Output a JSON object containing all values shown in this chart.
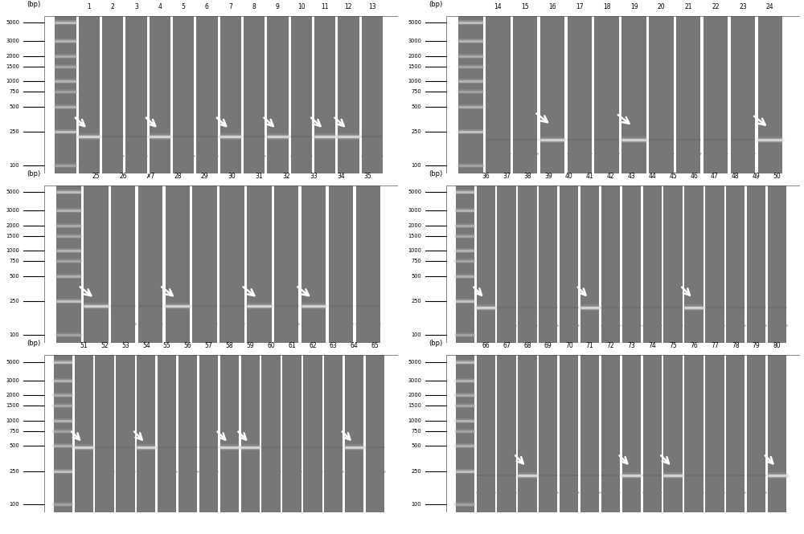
{
  "panels": [
    {
      "id": "panel1",
      "lane_labels": [
        "1",
        "2",
        "3",
        "4",
        "5",
        "6",
        "7",
        "8",
        "9",
        "10",
        "11",
        "12",
        "13"
      ],
      "bp_label": "(bp)",
      "arrows": [
        {
          "lane": 1,
          "bp": 250
        },
        {
          "lane": 4,
          "bp": 250
        },
        {
          "lane": 7,
          "bp": 250
        },
        {
          "lane": 9,
          "bp": 250
        },
        {
          "lane": 11,
          "bp": 250
        },
        {
          "lane": 12,
          "bp": 250
        }
      ],
      "bands_bright": [
        1,
        4,
        7,
        9,
        11,
        12
      ],
      "bands_dim": [
        2,
        3,
        5,
        6,
        8,
        10,
        13
      ],
      "band_bp": 220,
      "dim_bp": 130,
      "ladder_ticks": [
        5000,
        3000,
        2000,
        1500,
        1000,
        750,
        500,
        250,
        100
      ]
    },
    {
      "id": "panel2",
      "lane_labels": [
        "14",
        "15",
        "16",
        "17",
        "18",
        "19",
        "20",
        "21",
        "22",
        "23",
        "24"
      ],
      "bp_label": "(bp)",
      "arrows": [
        {
          "lane": 3,
          "bp": 280
        },
        {
          "lane": 6,
          "bp": 270
        },
        {
          "lane": 11,
          "bp": 260
        }
      ],
      "bands_bright": [
        3,
        6,
        11
      ],
      "bands_dim": [
        1,
        2,
        4,
        5,
        7,
        8,
        9,
        10
      ],
      "band_bp": 200,
      "dim_bp": 140,
      "ladder_ticks": [
        5000,
        3000,
        2000,
        1500,
        1000,
        750,
        500,
        250,
        100
      ]
    },
    {
      "id": "panel3",
      "lane_labels": [
        "25",
        "26",
        "✗7",
        "28",
        "29",
        "30",
        "31",
        "32",
        "33",
        "34",
        "35"
      ],
      "bp_label": "(bp)",
      "arrows": [
        {
          "lane": 1,
          "bp": 250
        },
        {
          "lane": 4,
          "bp": 250
        },
        {
          "lane": 7,
          "bp": 250
        },
        {
          "lane": 9,
          "bp": 250
        }
      ],
      "bands_bright": [
        1,
        4,
        7,
        9
      ],
      "bands_dim": [
        2,
        3,
        5,
        6,
        8,
        10,
        11
      ],
      "band_bp": 220,
      "dim_bp": 135,
      "ladder_ticks": [
        5000,
        3000,
        2000,
        1500,
        1000,
        750,
        500,
        250,
        100
      ]
    },
    {
      "id": "panel4",
      "lane_labels": [
        "36",
        "37",
        "38",
        "39",
        "40",
        "41",
        "42",
        "43",
        "44",
        "45",
        "46",
        "47",
        "48",
        "49",
        "50"
      ],
      "bp_label": "(bp)",
      "arrows": [
        {
          "lane": 1,
          "bp": 250
        },
        {
          "lane": 6,
          "bp": 250
        },
        {
          "lane": 11,
          "bp": 250
        }
      ],
      "bands_bright": [
        1,
        6,
        11
      ],
      "bands_dim": [
        2,
        3,
        4,
        5,
        7,
        8,
        9,
        10,
        12,
        13,
        14,
        15
      ],
      "band_bp": 210,
      "dim_bp": 130,
      "ladder_ticks": [
        5000,
        3000,
        2000,
        1500,
        1000,
        750,
        500,
        250,
        100
      ]
    },
    {
      "id": "panel5",
      "lane_labels": [
        "51",
        "52",
        "53",
        "54",
        "55",
        "56",
        "57",
        "58",
        "59",
        "60",
        "61",
        "62",
        "63",
        "64",
        "65"
      ],
      "bp_label": "(bp)",
      "arrows": [
        {
          "lane": 1,
          "bp": 500
        },
        {
          "lane": 4,
          "bp": 500
        },
        {
          "lane": 8,
          "bp": 500
        },
        {
          "lane": 9,
          "bp": 500
        },
        {
          "lane": 14,
          "bp": 500
        }
      ],
      "bands_bright": [
        1,
        4,
        8,
        9,
        14
      ],
      "bands_dim": [
        2,
        3,
        5,
        6,
        7,
        10,
        11,
        12,
        13,
        15
      ],
      "band_bp": 480,
      "dim_bp": 250,
      "ladder_ticks": [
        5000,
        3000,
        2000,
        1500,
        1000,
        750,
        500,
        250,
        100
      ]
    },
    {
      "id": "panel6",
      "lane_labels": [
        "66",
        "67",
        "68",
        "69",
        "70",
        "71",
        "72",
        "73",
        "74",
        "75",
        "76",
        "77",
        "78",
        "79",
        "80"
      ],
      "bp_label": "(bp)",
      "arrows": [
        {
          "lane": 3,
          "bp": 260
        },
        {
          "lane": 8,
          "bp": 260
        },
        {
          "lane": 10,
          "bp": 260
        },
        {
          "lane": 15,
          "bp": 260
        }
      ],
      "bands_bright": [
        3,
        8,
        10,
        15
      ],
      "bands_dim": [
        1,
        2,
        4,
        5,
        6,
        7,
        9,
        11,
        12,
        13,
        14
      ],
      "band_bp": 220,
      "dim_bp": 140,
      "ladder_ticks": [
        5000,
        3000,
        2000,
        1500,
        1000,
        750,
        500,
        250,
        100
      ]
    }
  ]
}
